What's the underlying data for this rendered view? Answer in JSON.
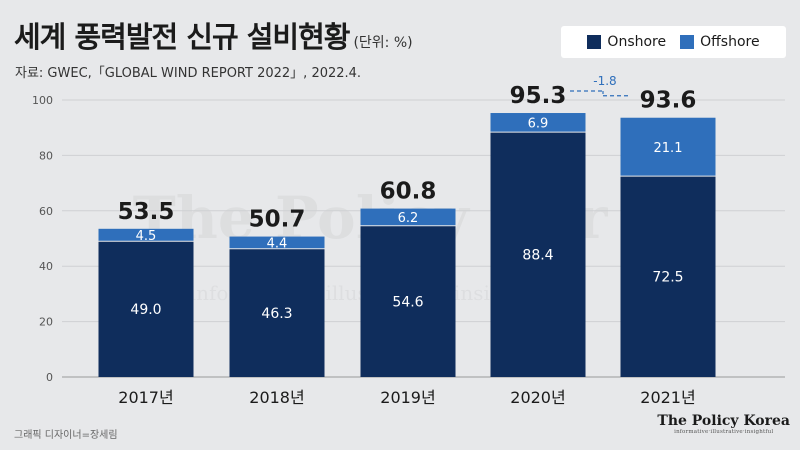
{
  "title": "세계 풍력발전 신규 설비현황",
  "unit_note": "(단위: %)",
  "source": "자료: GWEC,「GLOBAL WIND REPORT 2022」, 2022.4.",
  "credit": "그래픽 디자이너=장세림",
  "brand": {
    "name": "The Policy Korea",
    "tagline": "informative·illustrative·insightful"
  },
  "watermark": "The Policy Kor",
  "watermark_sub": "informative · illustrative · insightful",
  "colors": {
    "onshore": "#0f2d5c",
    "offshore": "#2f6fbb",
    "change_line": "#2f6fbb"
  },
  "chart_data": {
    "type": "bar",
    "stacked": true,
    "categories": [
      "2017년",
      "2018년",
      "2019년",
      "2020년",
      "2021년"
    ],
    "series": [
      {
        "name": "Onshore",
        "values": [
          49.0,
          46.3,
          54.6,
          88.4,
          72.5
        ]
      },
      {
        "name": "Offshore",
        "values": [
          4.5,
          4.4,
          6.2,
          6.9,
          21.1
        ]
      }
    ],
    "totals": [
      53.5,
      50.7,
      60.8,
      95.3,
      93.6
    ],
    "ylim": [
      0,
      100
    ],
    "yticks": [
      0,
      20,
      40,
      60,
      80,
      100
    ],
    "grid": true,
    "legend": "top-right",
    "annotation": {
      "text": "-1.8",
      "from_category": "2020년",
      "to_category": "2021년"
    }
  }
}
